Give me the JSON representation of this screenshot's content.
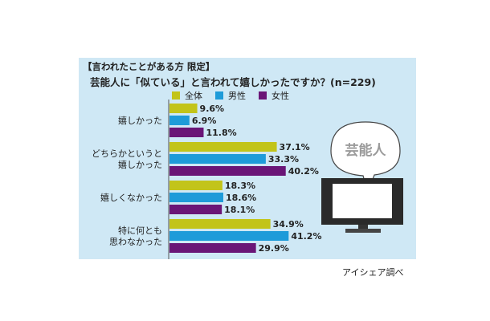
{
  "header": {
    "subtitle": "【言われたことがある方 限定】",
    "question": "芸能人に「似ている」と言われて嬉しかったですか？(n=229)"
  },
  "tv": {
    "screen_label": "芸能人"
  },
  "credit": "アイシェア調べ",
  "colors": {
    "all": "#c2c41a",
    "male": "#1e9bd9",
    "female": "#6a1577",
    "panel": "#cfe8f5"
  },
  "chart_data": {
    "type": "bar",
    "orientation": "horizontal",
    "categories": [
      [
        "嬉しかった"
      ],
      [
        "どちらかというと",
        "嬉しかった"
      ],
      [
        "嬉しくなかった"
      ],
      [
        "特に何とも",
        "思わなかった"
      ]
    ],
    "series": [
      {
        "name": "全体",
        "color": "#c2c41a",
        "values": [
          9.6,
          37.1,
          18.3,
          34.9
        ],
        "labels": [
          "9.6%",
          "37.1%",
          "18.3%",
          "34.9%"
        ]
      },
      {
        "name": "男性",
        "color": "#1e9bd9",
        "values": [
          6.9,
          33.3,
          18.6,
          41.2
        ],
        "labels": [
          "6.9%",
          "33.3%",
          "18.6%",
          "41.2%"
        ]
      },
      {
        "name": "女性",
        "color": "#6a1577",
        "values": [
          11.8,
          40.2,
          18.1,
          29.9
        ],
        "labels": [
          "11.8%",
          "40.2%",
          "18.1%",
          "29.9%"
        ]
      }
    ],
    "unit": "%",
    "xlim": [
      0,
      45
    ],
    "legend": "top"
  }
}
